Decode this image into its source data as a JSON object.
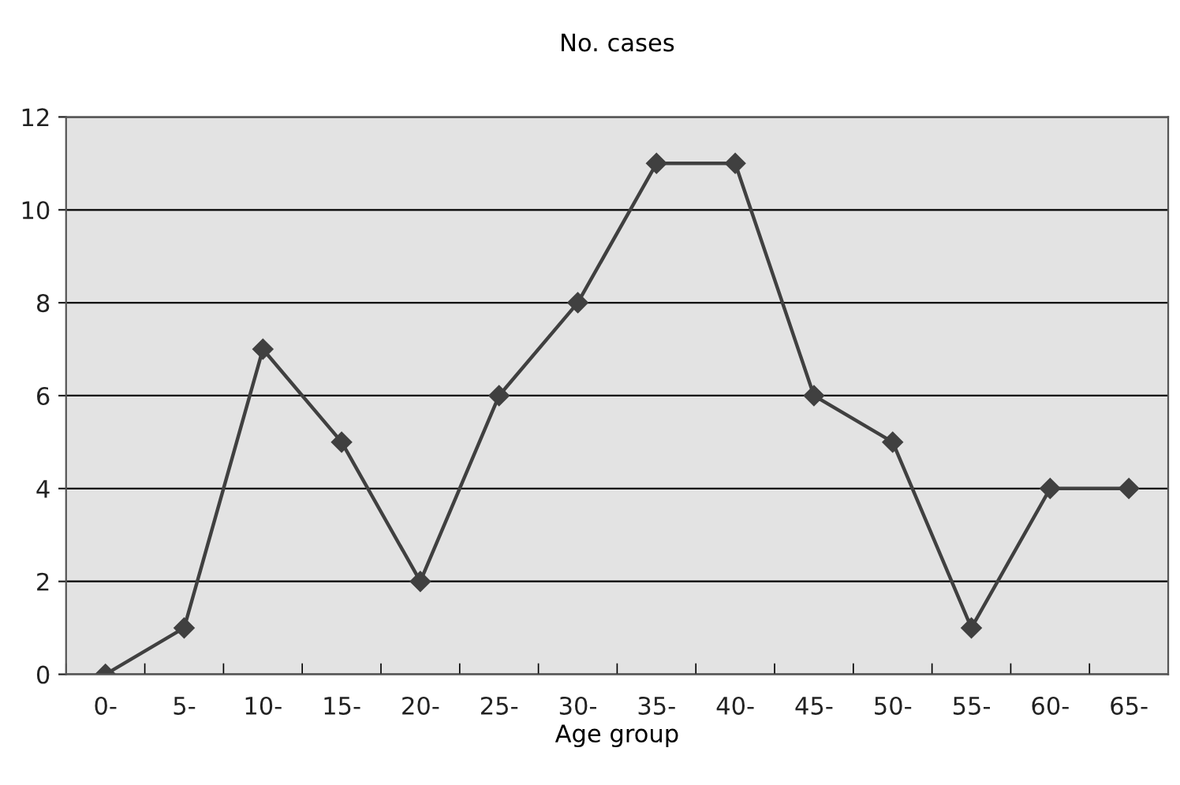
{
  "chart_data": {
    "type": "line",
    "title": "No. cases",
    "xlabel": "Age group",
    "categories": [
      "0-",
      "5-",
      "10-",
      "15-",
      "20-",
      "25-",
      "30-",
      "35-",
      "40-",
      "45-",
      "50-",
      "55-",
      "60-",
      "65-"
    ],
    "series": [
      {
        "color": "#404040",
        "values": [
          0,
          1,
          7,
          5,
          2,
          6,
          8,
          11,
          11,
          6,
          5,
          1,
          4,
          4
        ]
      }
    ],
    "ylim": [
      0,
      12
    ],
    "yticks": [
      0,
      2,
      4,
      6,
      8,
      10,
      12
    ],
    "grid": "y",
    "marker": "diamond",
    "line_style": "solid",
    "legend": false
  }
}
